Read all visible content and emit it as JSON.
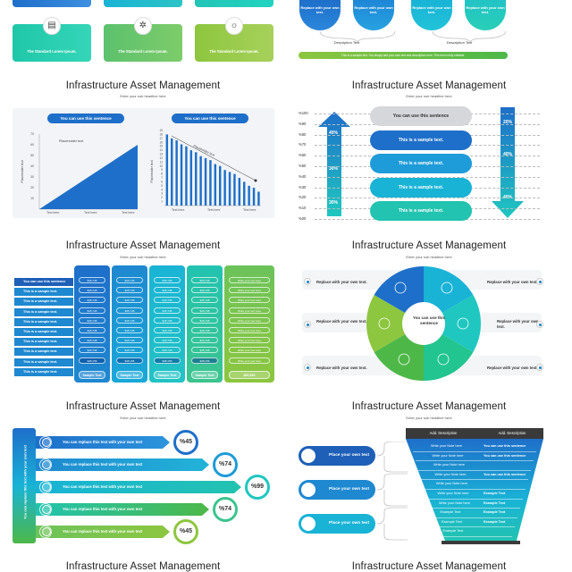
{
  "tl_cards": [
    {
      "label": "The Standard Lorem Ipsum.",
      "icon": "document-icon"
    },
    {
      "label": "The Standard Lorem Ipsum.",
      "icon": "network-icon"
    },
    {
      "label": "The Standard Lorem Ipsum.",
      "icon": "lightbulb-icon"
    }
  ],
  "tr_circles": [
    {
      "text": "Replace with your own text."
    },
    {
      "text": "Replace with your own text."
    },
    {
      "text": "Replace with your own text."
    },
    {
      "text": "Replace with your own text."
    }
  ],
  "tr_desc": [
    "Description Text",
    "Description Text"
  ],
  "tr_bar": "This is a sample text. You simply add your own text and description here. This text is fully editable.",
  "slides": [
    {
      "title": "Infrastructure Asset Management",
      "subtitle": "Enter your sub headline here"
    },
    {
      "title": "Infrastructure Asset Management",
      "subtitle": "Enter your sub headline here"
    },
    {
      "title": "Infrastructure Asset Management",
      "subtitle": "Enter your sub headline here"
    },
    {
      "title": "Infrastructure Asset Management",
      "subtitle": "Enter your sub headline here"
    },
    {
      "title": "Infrastructure Asset Management",
      "subtitle": "Enter your sub headline here"
    },
    {
      "title": "Infrastructure Asset Management",
      "subtitle": "Enter your sub headline here"
    },
    {
      "title": "Infrastructure Asset Management",
      "subtitle": "Enter your sub headline here"
    },
    {
      "title": "Infrastructure Asset Management",
      "subtitle": "Enter your sub headline here"
    }
  ],
  "chart_data": [
    {
      "type": "area",
      "pill": "You can use this sentence",
      "annotation": "Placeholder text",
      "ylabel": "Placeholder text",
      "y_ticks": [
        "70",
        "60",
        "50",
        "40",
        "30",
        "20",
        "10"
      ],
      "x_ticks": [
        "Text here",
        "Text here",
        "Text here"
      ],
      "x": [
        0,
        1
      ],
      "values": [
        0,
        60
      ],
      "ylim": [
        0,
        70
      ]
    },
    {
      "type": "bar",
      "pill": "You can use this sentence",
      "annotation": "Placeholder text",
      "ylabel": "Placeholder text",
      "y_ticks": [
        "19",
        "18",
        "17",
        "16",
        "15",
        "14",
        "13",
        "12",
        "11",
        "10",
        "9",
        "8",
        "7",
        "6",
        "5",
        "4",
        "3",
        "2",
        "1"
      ],
      "x_ticks": [
        "Text here",
        "Text here",
        "Text here"
      ],
      "values": [
        18,
        17,
        16.5,
        15.5,
        15,
        14,
        13.5,
        12.5,
        12,
        11.5,
        10.5,
        10,
        9,
        8.5,
        8,
        7,
        6,
        5,
        4.5,
        3.5
      ],
      "ylim": [
        0,
        19
      ]
    }
  ],
  "pct": {
    "labels": [
      "%100",
      "%90",
      "%80",
      "%70",
      "%60",
      "%50",
      "%40",
      "%30",
      "%20",
      "%10",
      "%00"
    ],
    "pills": [
      {
        "text": "You can use this sentence"
      },
      {
        "text": "This is a sample text."
      },
      {
        "text": "This is a sample text."
      },
      {
        "text": "This is a sample text."
      },
      {
        "text": "This is a sample text."
      }
    ],
    "left_vals": [
      "40%",
      "30%",
      "30%"
    ],
    "right_vals": [
      "20%",
      "40%",
      "40%"
    ]
  },
  "table": {
    "rows": [
      "You can use this sentence",
      "This is a sample text.",
      "This is a sample text.",
      "This is a sample text.",
      "This is a sample text.",
      "This is a sample text.",
      "This is a sample text.",
      "This is a sample text.",
      "This is a sample text.",
      "This is a sample text."
    ],
    "cell": "$15,745",
    "total": "$48,156",
    "footer": "Sample Text",
    "write_text": "Write your text here",
    "last_footer": "$52,652"
  },
  "circle": {
    "center": "You can use this sentence",
    "labels": [
      "Replace with your own text.",
      "Replace with your own text.",
      "Replace with your own text.",
      "Replace with your own text.",
      "Replace with your own text.",
      "Replace with your own text."
    ]
  },
  "arrows": {
    "side_text": "You can replace this text with your own text",
    "rows": [
      {
        "text": "You can replace this text with your own text",
        "pct": "%45"
      },
      {
        "text": "You can replace this text with your own text",
        "pct": "%74"
      },
      {
        "text": "You can replace this text with your own text",
        "pct": "%99"
      },
      {
        "text": "You can replace this text with your own text",
        "pct": "%74"
      },
      {
        "text": "You can replace this text with your own text",
        "pct": "%45"
      }
    ]
  },
  "funnel": {
    "headers": [
      "Add. Description",
      "Add. Description"
    ],
    "pills": [
      "Place your own text",
      "Place your own text",
      "Place your own text"
    ],
    "left_rows": [
      "Write your Note here",
      "Write your Note here",
      "Write your Note here",
      "Write your Note here",
      "Write your Note here",
      "Write your Note here",
      "Write your Note here",
      "Example Text",
      "Example Text",
      "Example Text"
    ],
    "right_rows": [
      "You can use this sentence",
      "You can use this sentence",
      "",
      "You can use this sentence",
      "",
      "Example Text",
      "Example Text",
      "Example Text",
      "Example Text",
      ""
    ]
  },
  "colors": {
    "blue": "#1e6fc9",
    "cyan": "#19b3d6",
    "green": "#4db848",
    "lime": "#8dc63f"
  }
}
